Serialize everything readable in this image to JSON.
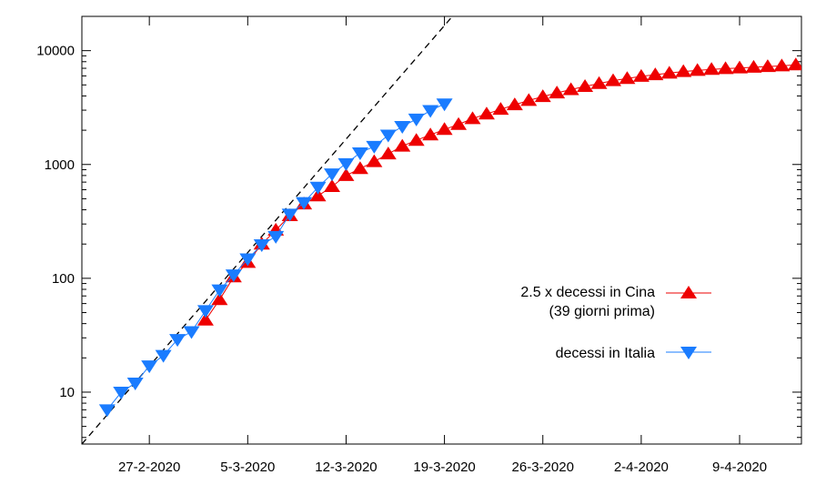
{
  "chart_data": {
    "type": "line",
    "x_scale": "day-index (0 = 24-2-2020)",
    "y_scale": "log",
    "ylim": [
      3.5,
      20000
    ],
    "xlim": [
      -1.8,
      49.4
    ],
    "y_ticks": [
      {
        "value": 10,
        "label": "10"
      },
      {
        "value": 100,
        "label": "100"
      },
      {
        "value": 1000,
        "label": "1000"
      },
      {
        "value": 10000,
        "label": "10000"
      }
    ],
    "x_ticks": [
      {
        "value": 3,
        "label": "27-2-2020"
      },
      {
        "value": 10,
        "label": "5-3-2020"
      },
      {
        "value": 17,
        "label": "12-3-2020"
      },
      {
        "value": 24,
        "label": "19-3-2020"
      },
      {
        "value": 31,
        "label": "26-3-2020"
      },
      {
        "value": 38,
        "label": "2-4-2020"
      },
      {
        "value": 45,
        "label": "9-4-2020"
      }
    ],
    "series": [
      {
        "name": "2.5 x decessi in Cina\n(39 giorni prima)",
        "label_line1": "2.5 x decessi in Cina",
        "label_line2": "(39 giorni prima)",
        "color": "#ee0000",
        "marker": "triangle-up",
        "x": [
          7,
          8,
          9,
          10,
          11,
          12,
          13,
          14,
          15,
          16,
          17,
          18,
          19,
          20,
          21,
          22,
          23,
          24,
          25,
          26,
          27,
          28,
          29,
          30,
          31,
          32,
          33,
          34,
          35,
          36,
          37,
          38,
          39,
          40,
          41,
          42,
          43,
          44,
          45,
          46,
          47,
          48,
          49
        ],
        "values": [
          43,
          65,
          103,
          138,
          200,
          265,
          355,
          450,
          530,
          640,
          800,
          920,
          1060,
          1240,
          1450,
          1630,
          1820,
          2030,
          2250,
          2530,
          2780,
          3050,
          3350,
          3650,
          3950,
          4250,
          4550,
          4850,
          5150,
          5450,
          5700,
          5950,
          6150,
          6350,
          6550,
          6700,
          6850,
          6950,
          7050,
          7150,
          7250,
          7350,
          7500
        ]
      },
      {
        "name": "decessi in Italia",
        "label_line1": "decessi in Italia",
        "color": "#1a7cff",
        "marker": "triangle-down",
        "x": [
          0,
          1,
          2,
          3,
          4,
          5,
          6,
          7,
          8,
          9,
          10,
          11,
          12,
          13,
          14,
          15,
          16,
          17,
          18,
          19,
          20,
          21,
          22,
          23,
          24
        ],
        "values": [
          7,
          10,
          12,
          17,
          21,
          29,
          34,
          52,
          79,
          107,
          148,
          197,
          233,
          366,
          463,
          631,
          827,
          1016,
          1266,
          1441,
          1809,
          2158,
          2503,
          2978,
          3405
        ]
      }
    ],
    "trend_line": {
      "style": "dashed",
      "color": "#000000",
      "x0": -1.8,
      "y0": 3.5,
      "x1": 25.8,
      "y1": 30000
    },
    "legend_placement": "right-center",
    "grid": false
  }
}
